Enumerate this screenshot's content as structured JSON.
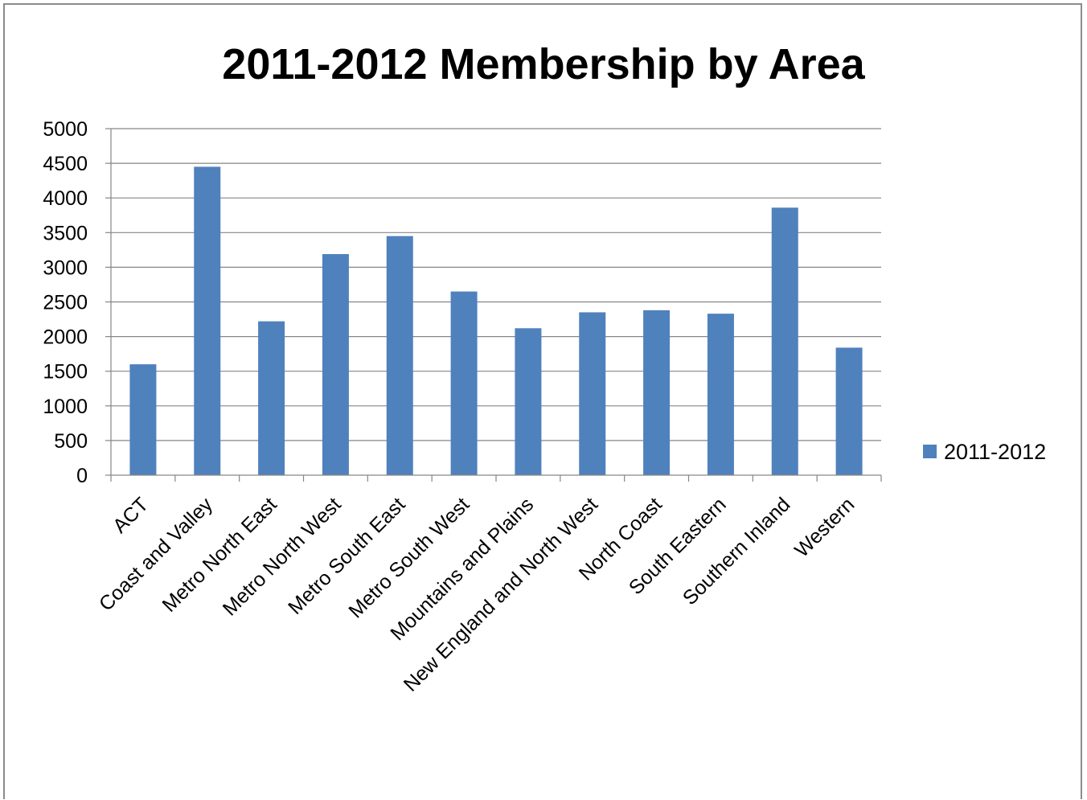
{
  "chart_data": {
    "type": "bar",
    "title": "2011-2012 Membership by Area",
    "xlabel": "",
    "ylabel": "",
    "categories": [
      "ACT",
      "Coast and Valley",
      "Metro North East",
      "Metro North West",
      "Metro South East",
      "Metro South West",
      "Mountains and Plains",
      "New England and North West",
      "North Coast",
      "South Eastern",
      "Southern Inland",
      "Western"
    ],
    "series": [
      {
        "name": "2011-2012",
        "color": "#4f81bd",
        "values": [
          1600,
          4450,
          2220,
          3190,
          3450,
          2650,
          2120,
          2350,
          2380,
          2330,
          3860,
          1840
        ]
      }
    ],
    "ylim": [
      0,
      5000
    ],
    "yticks": [
      0,
      500,
      1000,
      1500,
      2000,
      2500,
      3000,
      3500,
      4000,
      4500,
      5000
    ],
    "grid": true,
    "legend": "right"
  }
}
